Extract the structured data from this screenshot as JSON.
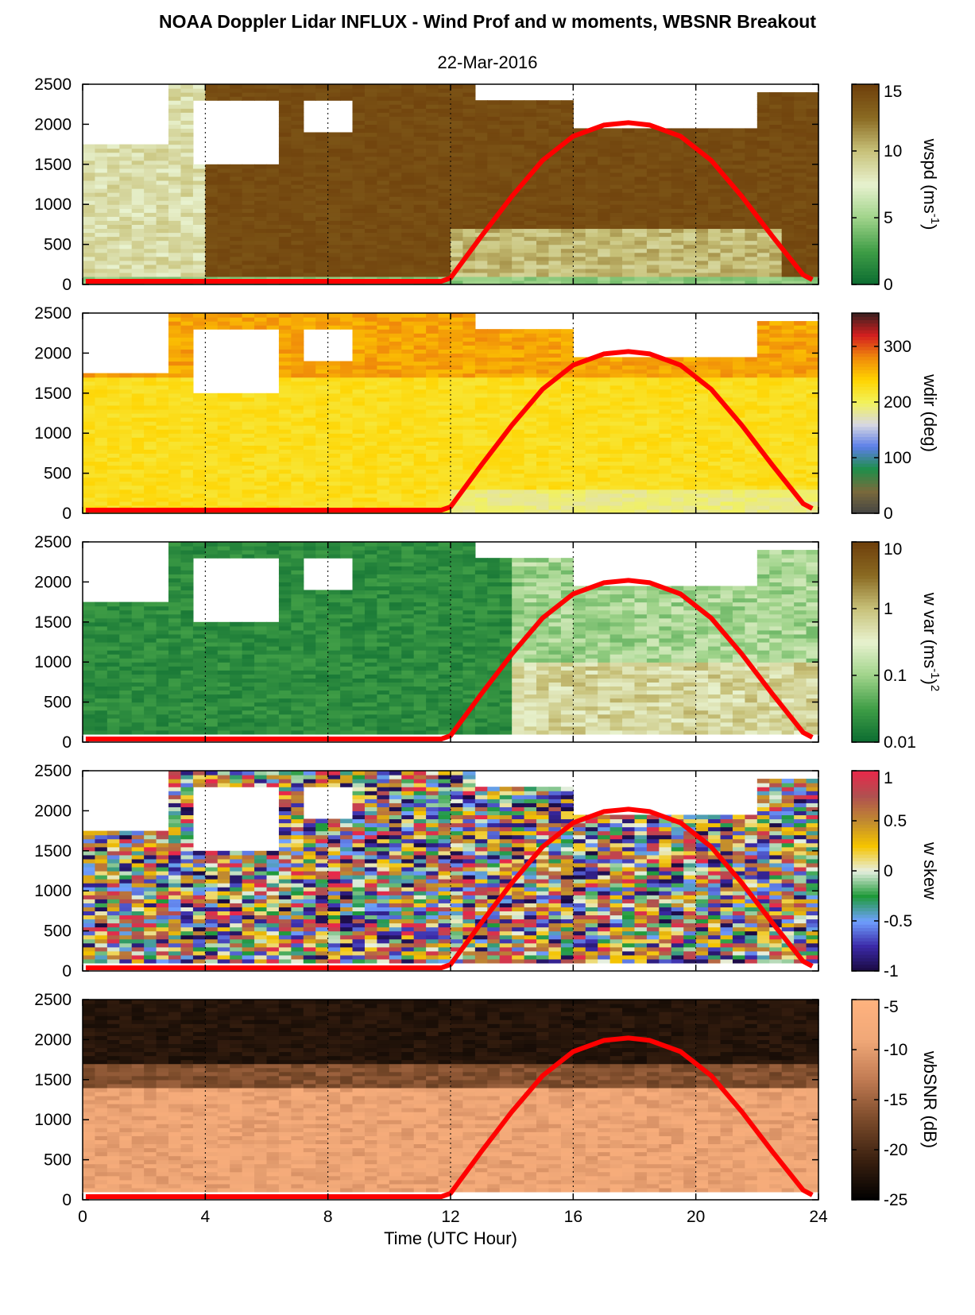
{
  "figure": {
    "title": "NOAA Doppler Lidar INFLUX - Wind Prof and w moments, WBSNR Breakout",
    "date": "22-Mar-2016"
  },
  "chart_data": {
    "type": "heatmap",
    "xlabel": "Time (UTC Hour)",
    "xlim": [
      0,
      24
    ],
    "x_ticks": [
      "0",
      "4",
      "8",
      "12",
      "16",
      "20",
      "24"
    ],
    "ylim": [
      0,
      2500
    ],
    "y_ticks": [
      "0",
      "500",
      "1000",
      "1500",
      "2000",
      "2500"
    ],
    "grid": "dotted vertical lines at 4, 8, 12, 16, 20",
    "overlay_line": {
      "color": "#ff0000",
      "points": [
        [
          0.1,
          40
        ],
        [
          11.7,
          40
        ],
        [
          12,
          80
        ],
        [
          13,
          600
        ],
        [
          14,
          1100
        ],
        [
          15,
          1550
        ],
        [
          16,
          1850
        ],
        [
          17,
          1990
        ],
        [
          17.8,
          2020
        ],
        [
          18.5,
          1990
        ],
        [
          19.5,
          1850
        ],
        [
          20.5,
          1550
        ],
        [
          21.5,
          1100
        ],
        [
          22.5,
          600
        ],
        [
          23.5,
          120
        ],
        [
          23.8,
          60
        ]
      ]
    },
    "panels": [
      {
        "id": "wspd",
        "colorbar_label_main": "wspd (ms",
        "colorbar_label_sup": "-1",
        "colorbar_label_end": ")",
        "colorbar_ticks": [
          "0",
          "5",
          "10",
          "15"
        ],
        "colorbar_range": [
          0,
          15
        ],
        "colormap": [
          "#0b6b31",
          "#3f9d46",
          "#9fd38a",
          "#e8f2cf",
          "#c8c27a",
          "#8a6a22",
          "#6e3f0b"
        ]
      },
      {
        "id": "wdir",
        "colorbar_label_main": "wdir (deg)",
        "colorbar_label_sup": "",
        "colorbar_label_end": "",
        "colorbar_ticks": [
          "0",
          "100",
          "200",
          "300"
        ],
        "colorbar_range": [
          0,
          360
        ],
        "colormap": [
          "#444444",
          "#7a6a3c",
          "#1f8f4a",
          "#5b7ee8",
          "#d8d8e2",
          "#f2f25a",
          "#ffd400",
          "#f08a0a",
          "#d41f1f",
          "#3a2020"
        ]
      },
      {
        "id": "wvar",
        "colorbar_label_main": "w var (ms",
        "colorbar_label_sup": "-1",
        "colorbar_label_end": ")",
        "colorbar_label_sup2": "2",
        "colorbar_ticks": [
          "0.01",
          "0.1",
          "1",
          "10"
        ],
        "colorbar_scale": "log",
        "colorbar_range": [
          0.01,
          10
        ],
        "colormap": [
          "#0b6b31",
          "#3f9d46",
          "#9fd38a",
          "#e8f2cf",
          "#c8c27a",
          "#8a6a22",
          "#6e3f0b"
        ]
      },
      {
        "id": "wskew",
        "colorbar_label_main": "w skew",
        "colorbar_label_sup": "",
        "colorbar_label_end": "",
        "colorbar_ticks": [
          "-1",
          "-0.5",
          "0",
          "0.5",
          "1"
        ],
        "colorbar_range": [
          -1,
          1
        ],
        "colormap": [
          "#1a0a40",
          "#3b2aa8",
          "#6fa0ff",
          "#1f9a3a",
          "#e6efe0",
          "#f5c400",
          "#c08a30",
          "#b05050",
          "#e8284a"
        ]
      },
      {
        "id": "wbsnr",
        "colorbar_label_main": "wbSNR (dB)",
        "colorbar_label_sup": "",
        "colorbar_label_end": "",
        "colorbar_ticks": [
          "-25",
          "-20",
          "-15",
          "-10",
          "-5"
        ],
        "colorbar_range": [
          -25,
          -5
        ],
        "colormap": [
          "#000000",
          "#3a2010",
          "#7a4a2a",
          "#c07a52",
          "#f0a878",
          "#ffb27e"
        ]
      }
    ]
  }
}
